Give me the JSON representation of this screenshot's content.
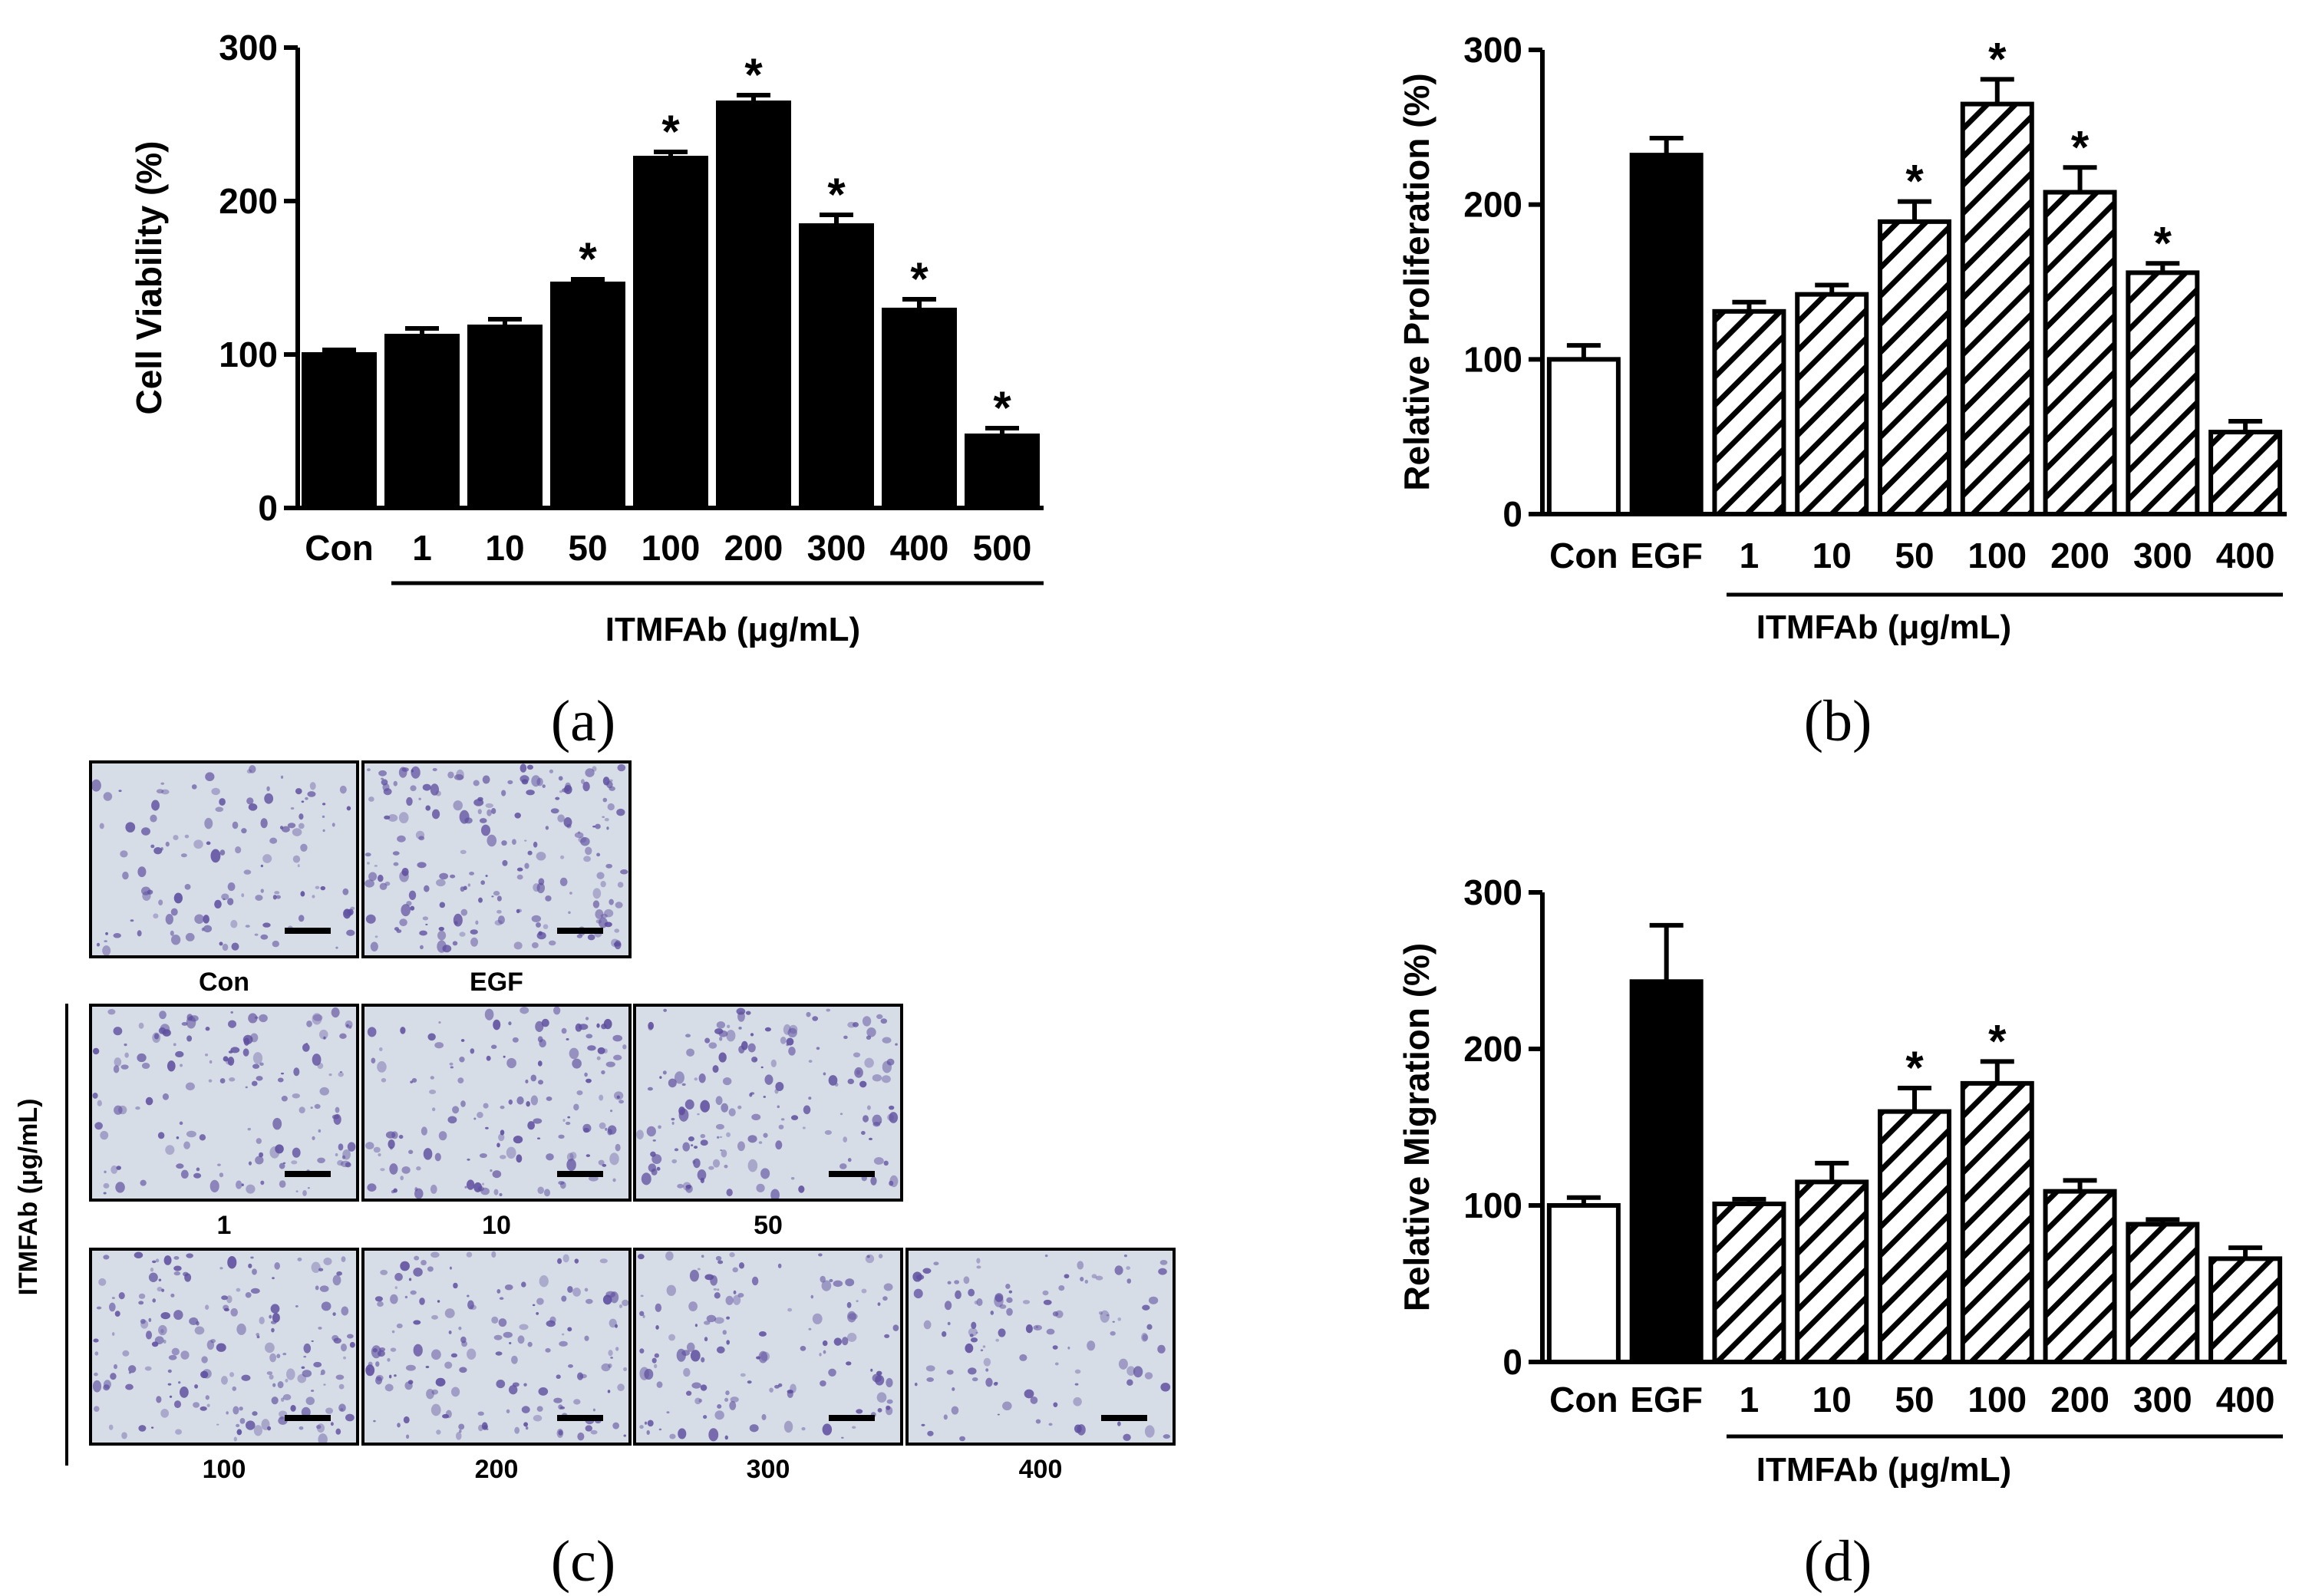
{
  "colors": {
    "ink": "#000000",
    "paper": "#ffffff",
    "micro_bg": "#d6dde6",
    "micro_stain": "#5e4e9f"
  },
  "chart_data": [
    {
      "type": "bar",
      "panel": "(a)",
      "ylabel": "Cell Viability (%)",
      "ylim": [
        0,
        300
      ],
      "yticks": [
        0,
        100,
        200,
        300
      ],
      "categories": [
        "Con",
        "1",
        "10",
        "50",
        "100",
        "200",
        "300",
        "400",
        "500"
      ],
      "values": [
        100,
        112,
        118,
        146,
        228,
        264,
        184,
        129,
        47
      ],
      "errors": [
        3,
        5,
        5,
        3,
        4,
        5,
        7,
        7,
        5
      ],
      "fills": [
        "solid",
        "solid",
        "solid",
        "solid",
        "solid",
        "solid",
        "solid",
        "solid",
        "solid"
      ],
      "significant": [
        false,
        false,
        false,
        true,
        true,
        true,
        true,
        true,
        true
      ],
      "significance_mark": "*",
      "group_label": "ITMFAb (μg/mL)",
      "group_start": 1,
      "group_end": 8
    },
    {
      "type": "bar",
      "panel": "(b)",
      "ylabel": "Relative  Proliferation (%)",
      "ylim": [
        0,
        300
      ],
      "yticks": [
        0,
        100,
        200,
        300
      ],
      "categories": [
        "Con",
        "EGF",
        "1",
        "10",
        "50",
        "100",
        "200",
        "300",
        "400"
      ],
      "values": [
        100,
        232,
        131,
        142,
        189,
        265,
        208,
        156,
        53
      ],
      "errors": [
        9,
        11,
        6,
        6,
        13,
        16,
        16,
        6,
        7
      ],
      "fills": [
        "white",
        "solid",
        "hatch",
        "hatch",
        "hatch",
        "hatch",
        "hatch",
        "hatch",
        "hatch"
      ],
      "significant": [
        false,
        false,
        false,
        false,
        true,
        true,
        true,
        true,
        false
      ],
      "significance_mark": "*",
      "group_label": "ITMFAb (μg/mL)",
      "group_start": 2,
      "group_end": 8
    },
    {
      "type": "bar",
      "panel": "(d)",
      "ylabel": "Relative Migration (%)",
      "ylim": [
        0,
        300
      ],
      "yticks": [
        0,
        100,
        200,
        300
      ],
      "categories": [
        "Con",
        "EGF",
        "1",
        "10",
        "50",
        "100",
        "200",
        "300",
        "400"
      ],
      "values": [
        100,
        243,
        101,
        115,
        160,
        178,
        109,
        88,
        66
      ],
      "errors": [
        5,
        36,
        3,
        12,
        15,
        14,
        7,
        3,
        7
      ],
      "fills": [
        "white",
        "solid",
        "hatch",
        "hatch",
        "hatch",
        "hatch",
        "hatch",
        "hatch",
        "hatch"
      ],
      "significant": [
        false,
        false,
        false,
        false,
        true,
        true,
        false,
        false,
        false
      ],
      "significance_mark": "*",
      "group_label": "ITMFAb (μg/mL)",
      "group_start": 2,
      "group_end": 8
    }
  ],
  "micrographs": {
    "panel": "(c)",
    "group_label": "ITMFAb (μg/mL)",
    "images": [
      {
        "label": "Con",
        "density": 0.45
      },
      {
        "label": "EGF",
        "density": 1.0
      },
      {
        "label": "1",
        "density": 0.6
      },
      {
        "label": "10",
        "density": 0.65
      },
      {
        "label": "50",
        "density": 0.75
      },
      {
        "label": "100",
        "density": 0.9
      },
      {
        "label": "200",
        "density": 0.7
      },
      {
        "label": "300",
        "density": 0.55
      },
      {
        "label": "400",
        "density": 0.4
      }
    ]
  }
}
